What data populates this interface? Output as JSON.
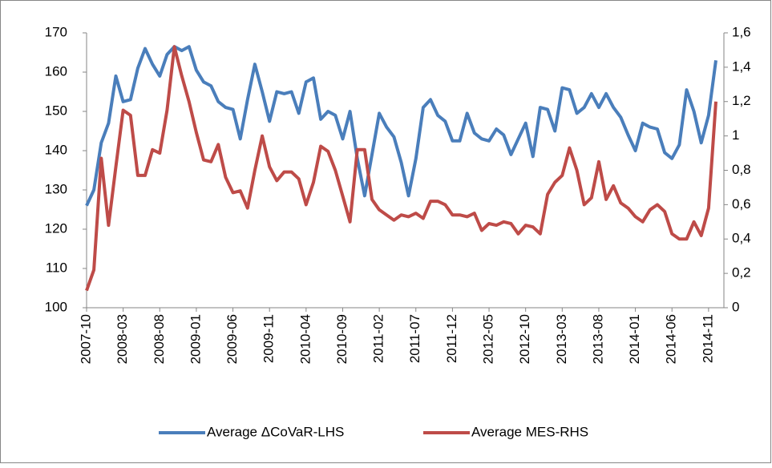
{
  "chart_data": {
    "type": "line",
    "categories": [
      "2007-10",
      null,
      null,
      null,
      null,
      "2008-03",
      null,
      null,
      null,
      null,
      "2008-08",
      null,
      null,
      null,
      null,
      "2009-01",
      null,
      null,
      null,
      null,
      "2009-06",
      null,
      null,
      null,
      null,
      "2009-11",
      null,
      null,
      null,
      null,
      "2010-04",
      null,
      null,
      null,
      null,
      "2010-09",
      null,
      null,
      null,
      null,
      "2011-02",
      null,
      null,
      null,
      null,
      "2011-07",
      null,
      null,
      null,
      null,
      "2011-12",
      null,
      null,
      null,
      null,
      "2012-05",
      null,
      null,
      null,
      null,
      "2012-10",
      null,
      null,
      null,
      null,
      "2013-03",
      null,
      null,
      null,
      null,
      "2013-08",
      null,
      null,
      null,
      null,
      "2014-01",
      null,
      null,
      null,
      null,
      "2014-06",
      null,
      null,
      null,
      null,
      "2014-11",
      null
    ],
    "series": [
      {
        "name": "Average ΔCoVaR-LHS",
        "color": "#4a7ebb",
        "axis": "y",
        "values": [
          126,
          130,
          142,
          147,
          159,
          152.5,
          153,
          161,
          166,
          162,
          159,
          164.5,
          166.5,
          165.5,
          166.5,
          160.5,
          157.5,
          156.5,
          152.5,
          151,
          150.5,
          143,
          153,
          162,
          155,
          147.5,
          155,
          154.5,
          155,
          149.5,
          157.5,
          158.5,
          148,
          150,
          149,
          143,
          150,
          138,
          128.5,
          139,
          149.5,
          146,
          143.5,
          137,
          128.5,
          138,
          151,
          153,
          149,
          147.5,
          142.5,
          142.5,
          149.5,
          144.5,
          143,
          142.5,
          145.5,
          144,
          139,
          143,
          147,
          138.5,
          151,
          150.5,
          145,
          156,
          155.5,
          149.5,
          151,
          154.5,
          151,
          154.5,
          151,
          148.5,
          144,
          140,
          147,
          146,
          145.5,
          139.5,
          138,
          141.5,
          155.5,
          150,
          142,
          149,
          163
        ]
      },
      {
        "name": "Average MES-RHS",
        "color": "#be4b48",
        "axis": "y2",
        "values": [
          0.1,
          0.22,
          0.87,
          0.48,
          0.82,
          1.15,
          1.12,
          0.77,
          0.77,
          0.92,
          0.9,
          1.15,
          1.52,
          1.35,
          1.2,
          1.02,
          0.86,
          0.85,
          0.95,
          0.76,
          0.67,
          0.68,
          0.58,
          0.8,
          1.0,
          0.82,
          0.74,
          0.79,
          0.79,
          0.75,
          0.6,
          0.73,
          0.94,
          0.91,
          0.8,
          0.65,
          0.5,
          0.92,
          0.92,
          0.63,
          0.57,
          0.54,
          0.51,
          0.54,
          0.53,
          0.55,
          0.52,
          0.62,
          0.62,
          0.6,
          0.54,
          0.54,
          0.53,
          0.55,
          0.45,
          0.49,
          0.48,
          0.5,
          0.49,
          0.43,
          0.48,
          0.47,
          0.43,
          0.66,
          0.73,
          0.77,
          0.93,
          0.8,
          0.6,
          0.64,
          0.85,
          0.63,
          0.71,
          0.61,
          0.58,
          0.53,
          0.5,
          0.57,
          0.6,
          0.56,
          0.43,
          0.4,
          0.4,
          0.5,
          0.42,
          0.58,
          1.2
        ]
      }
    ],
    "ylim": [
      100,
      170
    ],
    "yticks": [
      100,
      110,
      120,
      130,
      140,
      150,
      160,
      170
    ],
    "y2lim": [
      0,
      1.6
    ],
    "y2ticks": [
      0,
      {
        "value": 0.2,
        "label": "0,2"
      },
      {
        "value": 0.4,
        "label": "0,4"
      },
      {
        "value": 0.6,
        "label": "0,6"
      },
      {
        "value": 0.8,
        "label": "0,8"
      },
      1,
      {
        "value": 1.2,
        "label": "1,2"
      },
      {
        "value": 1.4,
        "label": "1,4"
      },
      {
        "value": 1.6,
        "label": "1,6"
      }
    ],
    "legend": "bottom"
  }
}
